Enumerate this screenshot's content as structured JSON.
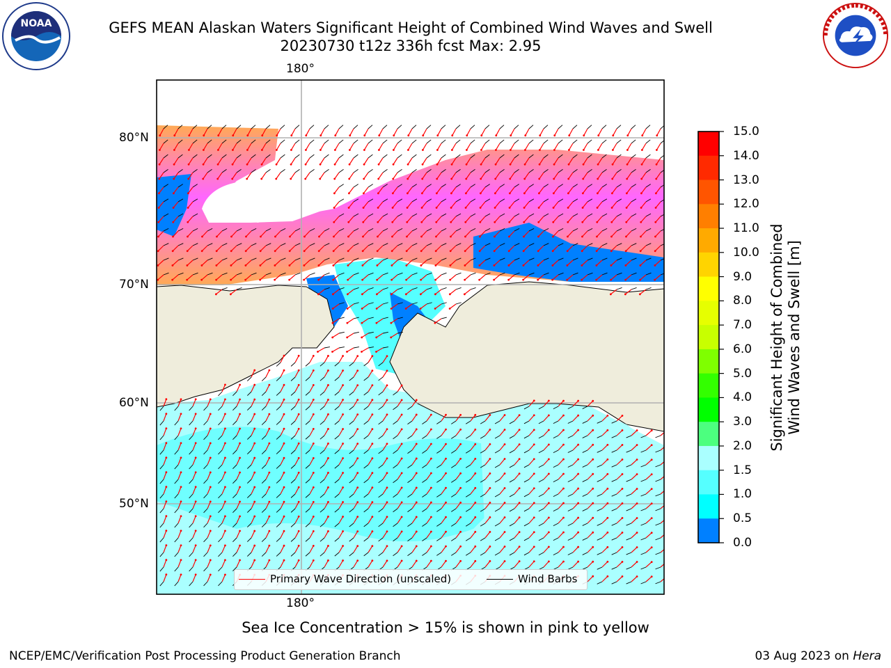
{
  "title": {
    "line1": "GEFS MEAN Alaskan Waters Significant Height of Combined Wind Waves and Swell",
    "line2": "20230730 t12z 336h fcst   Max: 2.95"
  },
  "axes": {
    "top_lon_label": "180°",
    "bottom_lon_label": "180°",
    "lat_labels": [
      "80°N",
      "70°N",
      "60°N",
      "50°N"
    ]
  },
  "legend": {
    "wave_label": "Primary Wave Direction (unscaled)",
    "wave_color": "#ff0000",
    "wind_label": "Wind Barbs",
    "wind_color": "#000000"
  },
  "colorbar": {
    "title": "Significant Height of Combined Wind Waves and Swell [m]",
    "ticks": [
      "15.0",
      "14.0",
      "13.0",
      "12.0",
      "11.0",
      "10.0",
      "9.0",
      "8.0",
      "7.0",
      "6.0",
      "5.0",
      "4.0",
      "3.0",
      "2.0",
      "1.5",
      "1.0",
      "0.5",
      "0.0"
    ],
    "colors_top_to_bottom": [
      "#ff0000",
      "#ff2a00",
      "#ff5500",
      "#ff7f00",
      "#ffaa00",
      "#ffd400",
      "#ffff00",
      "#e6ff00",
      "#c8ff00",
      "#7fff00",
      "#33ff00",
      "#00ff00",
      "#4cff7f",
      "#aaffff",
      "#55ffff",
      "#00ffff",
      "#0080ff",
      "#0000ff"
    ]
  },
  "colors": {
    "land": "#efeddc",
    "water_low": "#aaffff",
    "water_mid": "#55ffff",
    "ice_pink": "#ff66ff",
    "ice_orange": "#ffaa55",
    "ice_blue": "#0080ff",
    "grid": "#b0b0b0"
  },
  "notes": {
    "ice": "Sea Ice Concentration > 15% is shown in pink to yellow",
    "credit_left": "NCEP/EMC/Verification Post Processing Product Generation Branch",
    "credit_right_date": "03 Aug 2023 on ",
    "credit_right_host": "Hera"
  },
  "logos": {
    "noaa_text": "NOAA",
    "nws_text": "NATIONAL WEATHER SERVICE"
  }
}
